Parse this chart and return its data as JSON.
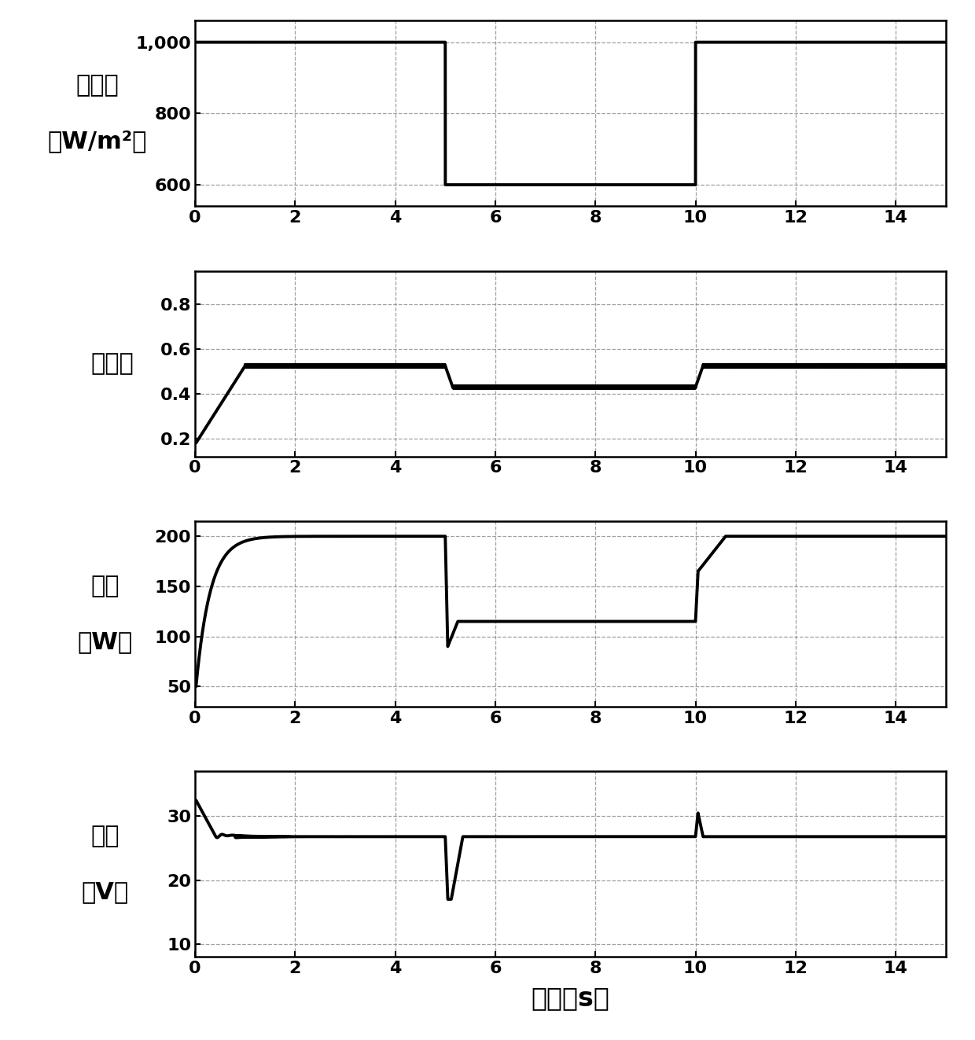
{
  "irradiance": {
    "ylabel_line1": "辐照度",
    "ylabel_line2": "（W/m²）",
    "ylim": [
      540,
      1060
    ],
    "yticks": [
      600,
      800,
      1000
    ],
    "ytick_labels": [
      "600",
      "800",
      "1,000"
    ]
  },
  "duty": {
    "ylabel": "占空比",
    "ylim": [
      0.12,
      0.95
    ],
    "yticks": [
      0.2,
      0.4,
      0.6,
      0.8
    ],
    "ytick_labels": [
      "0.2",
      "0.4",
      "0.6",
      "0.8"
    ]
  },
  "power": {
    "ylabel_line1": "功率",
    "ylabel_line2": "（W）",
    "ylim": [
      30,
      215
    ],
    "yticks": [
      50,
      100,
      150,
      200
    ],
    "ytick_labels": [
      "50",
      "100",
      "150",
      "200"
    ]
  },
  "voltage": {
    "ylabel_line1": "电压",
    "ylabel_line2": "（V）",
    "ylim": [
      8,
      37
    ],
    "yticks": [
      10,
      20,
      30
    ],
    "ytick_labels": [
      "10",
      "20",
      "30"
    ]
  },
  "xlabel": "时间（s）",
  "xlim": [
    0,
    15
  ],
  "xticks": [
    0,
    2,
    4,
    6,
    8,
    10,
    12,
    14
  ],
  "line_color": "black",
  "line_width": 2.8,
  "grid_color": "#888888",
  "background_color": "white",
  "label_fontsize": 22,
  "tick_fontsize": 16
}
